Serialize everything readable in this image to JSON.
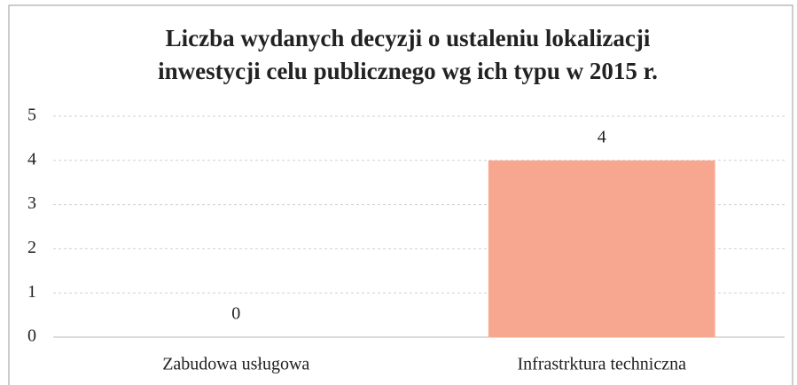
{
  "chart_data": {
    "type": "bar",
    "title": [
      "Liczba wydanych decyzji o ustaleniu lokalizacji",
      "inwestycji celu publicznego wg ich typu w 2015 r."
    ],
    "categories": [
      "Zabudowa usługowa",
      "Infrastrktura techniczna"
    ],
    "values": [
      0,
      4
    ],
    "color": "#f7a68f",
    "ylim": [
      0,
      5
    ],
    "yticks": [
      0,
      1,
      2,
      3,
      4,
      5
    ],
    "grid": true,
    "data_labels": true
  }
}
